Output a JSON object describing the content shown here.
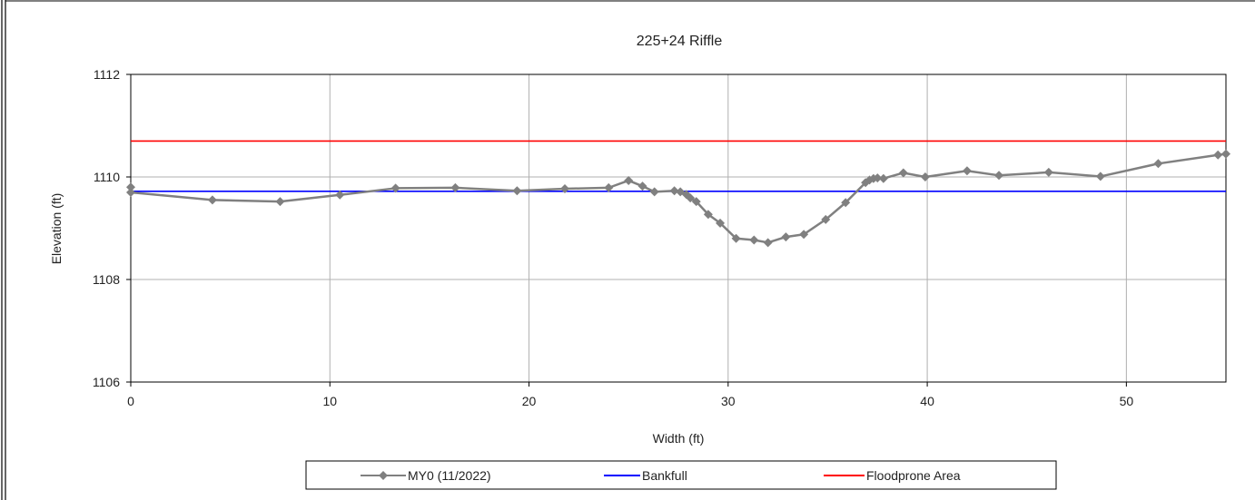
{
  "chart_data": {
    "type": "line",
    "title": "225+24 Riffle",
    "xlabel": "Width (ft)",
    "ylabel": "Elevation (ft)",
    "xlim": [
      0,
      55
    ],
    "ylim": [
      1106,
      1112
    ],
    "xticks": [
      "0",
      "10",
      "20",
      "30",
      "40",
      "50"
    ],
    "yticks": [
      "1106",
      "1108",
      "1110",
      "1112"
    ],
    "grid": true,
    "legend_position": "bottom",
    "series": [
      {
        "name": "MY0 (11/2022)",
        "color": "#808080",
        "marker": "diamond",
        "x": [
          0,
          0,
          4.1,
          7.5,
          10.5,
          13.3,
          16.3,
          19.4,
          21.8,
          24.0,
          25.0,
          25.7,
          26.3,
          27.3,
          27.6,
          27.9,
          28.1,
          28.4,
          29.0,
          29.6,
          30.4,
          31.3,
          32.0,
          32.9,
          33.8,
          34.9,
          35.9,
          36.9,
          37.1,
          37.3,
          37.5,
          37.8,
          38.8,
          39.9,
          42.0,
          43.6,
          46.1,
          48.7,
          51.6,
          54.6,
          55.0
        ],
        "y": [
          1109.8,
          1109.7,
          1109.55,
          1109.52,
          1109.65,
          1109.78,
          1109.79,
          1109.73,
          1109.77,
          1109.79,
          1109.93,
          1109.82,
          1109.71,
          1109.73,
          1109.71,
          1109.66,
          1109.59,
          1109.52,
          1109.27,
          1109.1,
          1108.8,
          1108.77,
          1108.72,
          1108.83,
          1108.88,
          1109.17,
          1109.5,
          1109.89,
          1109.94,
          1109.97,
          1109.98,
          1109.97,
          1110.08,
          1110.0,
          1110.12,
          1110.03,
          1110.09,
          1110.01,
          1110.26,
          1110.43,
          1110.45
        ]
      },
      {
        "name": "Bankfull",
        "color": "#0000ff",
        "x": [
          0,
          55
        ],
        "y": [
          1109.72,
          1109.72
        ]
      },
      {
        "name": "Floodprone Area",
        "color": "#ff0000",
        "x": [
          0,
          55
        ],
        "y": [
          1110.7,
          1110.7
        ]
      }
    ]
  }
}
